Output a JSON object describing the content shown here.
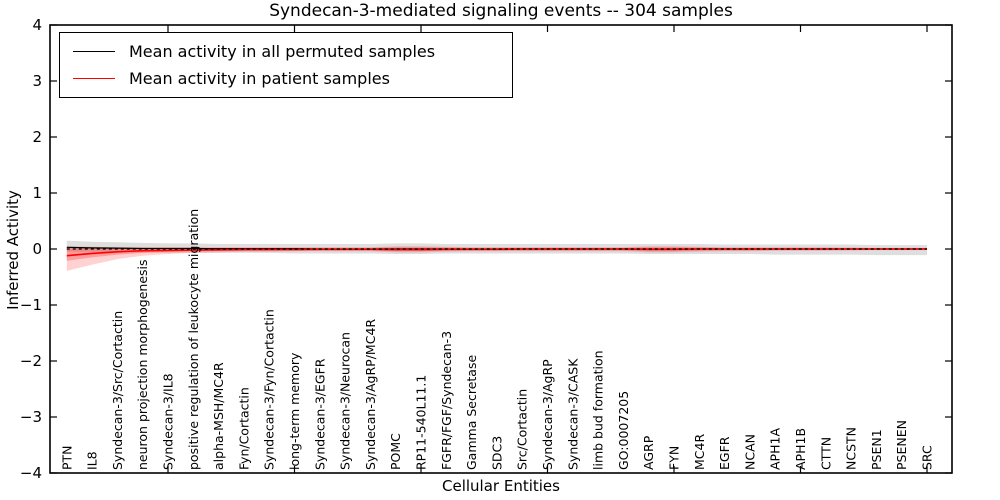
{
  "chart_data": {
    "type": "line",
    "title": "Syndecan-3-mediated signaling events -- 304 samples",
    "xlabel": "Cellular Entities",
    "ylabel": "Inferred Activity",
    "ylim": [
      -4,
      4
    ],
    "yticks": [
      "4",
      "3",
      "2",
      "1",
      "0",
      "−1",
      "−2",
      "−3",
      "−4"
    ],
    "ytick_values": [
      4,
      3,
      2,
      1,
      0,
      -1,
      -2,
      -3,
      -4
    ],
    "x_major_tick_positions": [
      5,
      10,
      15,
      20,
      25,
      30,
      35
    ],
    "grid": false,
    "legend_position": "upper left",
    "categories": [
      "PTN",
      "IL8",
      "Syndecan-3/Src/Cortactin",
      "neuron projection morphogenesis",
      "Syndecan-3/IL8",
      "positive regulation of leukocyte migration",
      "alpha-MSH/MC4R",
      "Fyn/Cortactin",
      "Syndecan-3/Fyn/Cortactin",
      "long-term memory",
      "Syndecan-3/EGFR",
      "Syndecan-3/Neurocan",
      "Syndecan-3/AgRP/MC4R",
      "POMC",
      "RP11-540L11.1",
      "FGFR/FGF/Syndecan-3",
      "Gamma Secretase",
      "SDC3",
      "Src/Cortactin",
      "Syndecan-3/AgRP",
      "Syndecan-3/CASK",
      "limb bud formation",
      "GO:0007205",
      "AGRP",
      "FYN",
      "MC4R",
      "EGFR",
      "NCAN",
      "APH1A",
      "APH1B",
      "CTTN",
      "NCSTN",
      "PSEN1",
      "PSENEN",
      "SRC"
    ],
    "series": [
      {
        "name": "Mean activity in all permuted samples",
        "color": "#000000",
        "values": [
          0.03,
          0.02,
          0.015,
          0.01,
          0.01,
          0.01,
          0.005,
          0.005,
          0.005,
          0.005,
          0,
          0,
          0,
          0,
          0,
          0,
          0,
          0,
          0,
          0,
          0,
          0,
          0,
          0,
          0,
          0,
          0,
          0,
          0,
          0,
          0,
          0,
          0,
          0,
          0
        ],
        "band_upper": [
          0.15,
          0.13,
          0.12,
          0.11,
          0.1,
          0.1,
          0.09,
          0.09,
          0.09,
          0.09,
          0.09,
          0.09,
          0.09,
          0.1,
          0.1,
          0.09,
          0.09,
          0.09,
          0.09,
          0.09,
          0.09,
          0.09,
          0.09,
          0.09,
          0.09,
          0.09,
          0.08,
          0.08,
          0.08,
          0.08,
          0.08,
          0.08,
          0.07,
          0.07,
          0.07
        ],
        "band_lower": [
          -0.05,
          -0.05,
          -0.06,
          -0.06,
          -0.07,
          -0.07,
          -0.07,
          -0.07,
          -0.07,
          -0.08,
          -0.08,
          -0.08,
          -0.08,
          -0.09,
          -0.09,
          -0.08,
          -0.08,
          -0.08,
          -0.08,
          -0.08,
          -0.08,
          -0.08,
          -0.08,
          -0.09,
          -0.09,
          -0.09,
          -0.09,
          -0.09,
          -0.1,
          -0.1,
          -0.1,
          -0.1,
          -0.11,
          -0.11,
          -0.11
        ]
      },
      {
        "name": "Mean activity in patient samples",
        "color": "#ff0000",
        "values": [
          -0.12,
          -0.08,
          -0.05,
          -0.03,
          -0.025,
          -0.02,
          -0.015,
          -0.01,
          -0.01,
          -0.01,
          -0.005,
          -0.005,
          -0.005,
          -0.01,
          -0.01,
          -0.005,
          -0.005,
          -0.005,
          0,
          0,
          0,
          0,
          0,
          -0.005,
          -0.005,
          0,
          0,
          0,
          0,
          0,
          0,
          0,
          0,
          0,
          0
        ],
        "band_upper": [
          0.05,
          0.04,
          0.03,
          0.03,
          0.03,
          0.03,
          0.03,
          0.03,
          0.03,
          0.03,
          0.03,
          0.03,
          0.03,
          0.05,
          0.05,
          0.04,
          0.03,
          0.03,
          0.03,
          0.03,
          0.03,
          0.03,
          0.03,
          0.05,
          0.05,
          0.04,
          0.03,
          0.03,
          0.03,
          0.03,
          0.03,
          0.03,
          0.02,
          0.02,
          0.02
        ],
        "band_lower": [
          -0.39,
          -0.28,
          -0.18,
          -0.12,
          -0.09,
          -0.07,
          -0.06,
          -0.05,
          -0.05,
          -0.04,
          -0.04,
          -0.04,
          -0.04,
          -0.06,
          -0.06,
          -0.05,
          -0.04,
          -0.04,
          -0.04,
          -0.04,
          -0.04,
          -0.04,
          -0.04,
          -0.06,
          -0.06,
          -0.05,
          -0.04,
          -0.04,
          -0.03,
          -0.03,
          -0.03,
          -0.03,
          -0.02,
          -0.02,
          -0.02
        ],
        "inner_band_upper": [
          0.03,
          0.025,
          0.02,
          0.02,
          0.02,
          0.02,
          0.02,
          0.02,
          0.02,
          0.02,
          0.02,
          0.02,
          0.02,
          0.03,
          0.03,
          0.025,
          0.02,
          0.02,
          0.02,
          0.02,
          0.02,
          0.02,
          0.02,
          0.03,
          0.03,
          0.025,
          0.02,
          0.02,
          0.02,
          0.02,
          0.02,
          0.015,
          0.015,
          0.015,
          0.015
        ],
        "inner_band_lower": [
          -0.21,
          -0.15,
          -0.1,
          -0.07,
          -0.05,
          -0.04,
          -0.035,
          -0.03,
          -0.03,
          -0.025,
          -0.025,
          -0.025,
          -0.025,
          -0.04,
          -0.04,
          -0.03,
          -0.025,
          -0.025,
          -0.025,
          -0.025,
          -0.025,
          -0.025,
          -0.025,
          -0.04,
          -0.04,
          -0.03,
          -0.025,
          -0.025,
          -0.02,
          -0.02,
          -0.02,
          -0.015,
          -0.015,
          -0.015,
          -0.015
        ],
        "zero_reference_line": 0
      }
    ]
  }
}
